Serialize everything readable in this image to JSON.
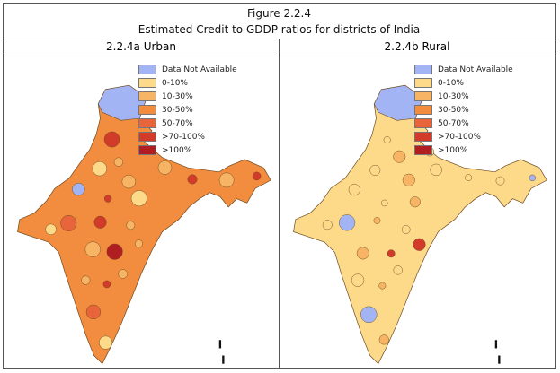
{
  "figure": {
    "number": "Figure 2.2.4",
    "title": "Estimated Credit to GDDP ratios for districts of India"
  },
  "legend": [
    {
      "label": "Data Not Available",
      "color": "#a3b4f5"
    },
    {
      "label": "0-10%",
      "color": "#fdd98a"
    },
    {
      "label": "10-30%",
      "color": "#f7b464"
    },
    {
      "label": "30-50%",
      "color": "#f28c3e"
    },
    {
      "label": "50-70%",
      "color": "#e8643a"
    },
    {
      "label": ">70-100%",
      "color": "#d23a2a"
    },
    {
      "label": ">100%",
      "color": "#b01e22"
    }
  ],
  "panels": [
    {
      "title": "2.2.4a Urban",
      "dominant_color": "#f28c3e"
    },
    {
      "title": "2.2.4b Rural",
      "dominant_color": "#fdd98a"
    }
  ]
}
